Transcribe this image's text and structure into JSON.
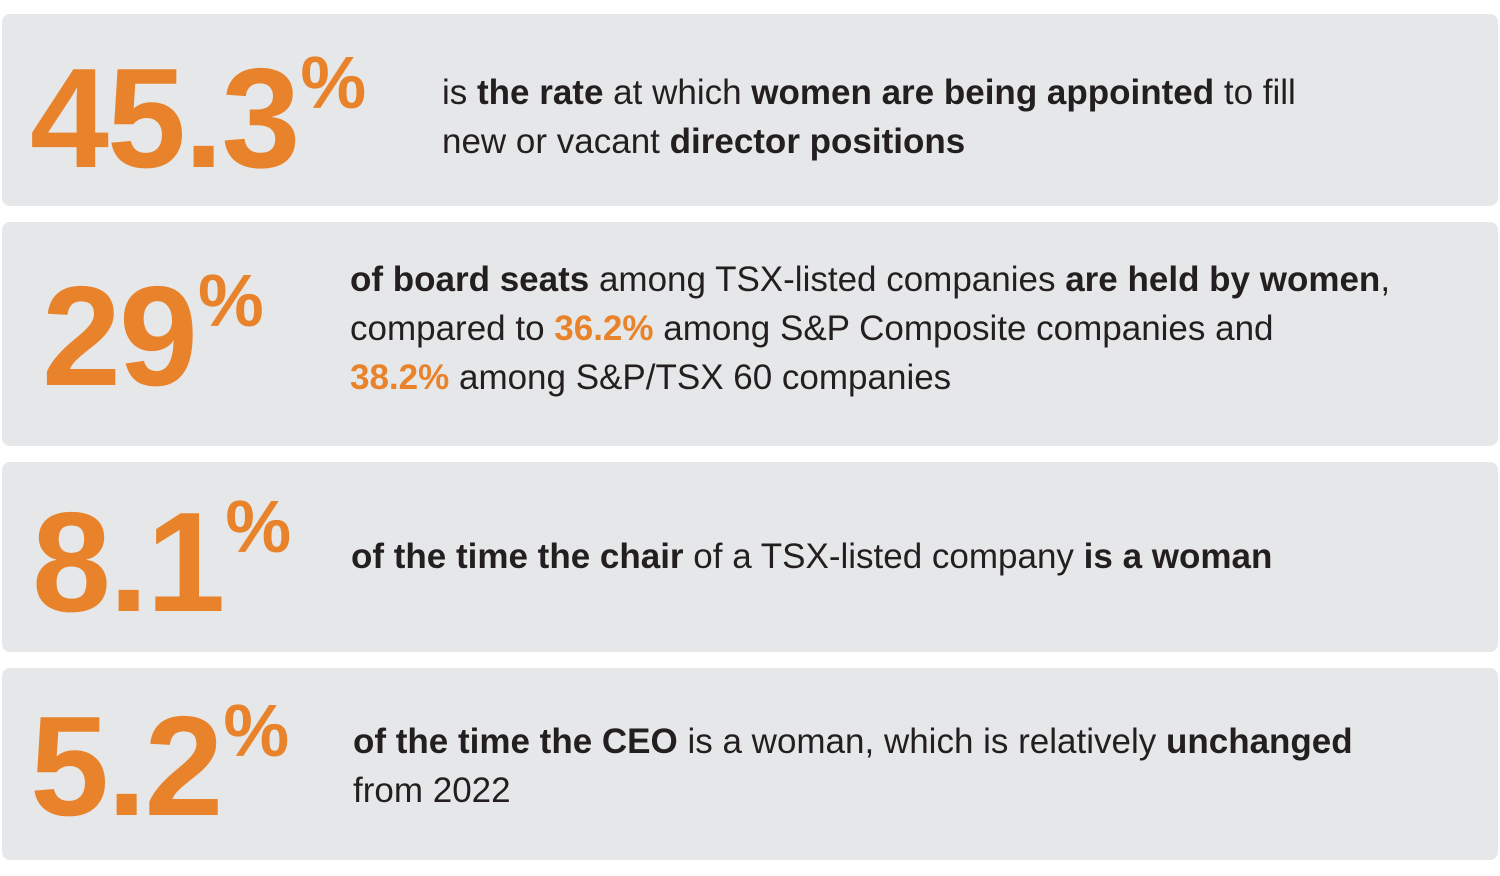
{
  "colors": {
    "accent": "#e8832b",
    "card_background": "#e6e7e8",
    "text": "#231f20"
  },
  "stats": [
    {
      "value": "45.3",
      "unit": "%",
      "lines": [
        [
          "is ",
          "the rate",
          " at which ",
          "women are being appointed",
          " to fill"
        ],
        [
          "new or vacant ",
          "director positions"
        ]
      ]
    },
    {
      "value": "29",
      "unit": "%",
      "lines": [
        [
          "of board seats",
          " among TSX-listed companies ",
          "are held by women",
          ","
        ],
        [
          "compared to ",
          "36.2%",
          " among S&P Composite companies and"
        ],
        [
          "38.2%",
          " among S&P/TSX 60 companies"
        ]
      ]
    },
    {
      "value": "8.1",
      "unit": "%",
      "lines": [
        [
          "of the time the chair",
          " of a TSX-listed company ",
          "is a woman"
        ]
      ]
    },
    {
      "value": "5.2",
      "unit": "%",
      "lines": [
        [
          "of the time the CEO",
          " is a woman, which is relatively ",
          "unchanged"
        ],
        [
          "from 2022"
        ]
      ]
    }
  ]
}
